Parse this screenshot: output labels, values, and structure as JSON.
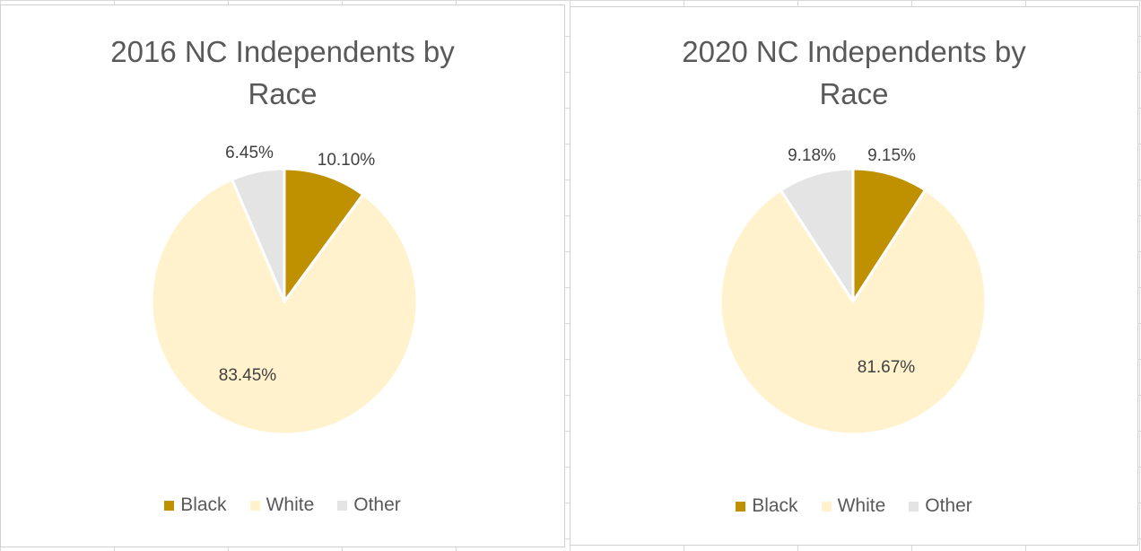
{
  "chart_data": [
    {
      "type": "pie",
      "title": "2016 NC Independents by Race",
      "title_lines": [
        "2016 NC Independents by",
        "Race"
      ],
      "categories": [
        "Black",
        "White",
        "Other"
      ],
      "values": [
        10.1,
        83.45,
        6.45
      ],
      "value_labels": [
        "10.10%",
        "83.45%",
        "6.45%"
      ],
      "colors": [
        "#BF9000",
        "#FFF2CC",
        "#E4E4E4"
      ],
      "legend": "bottom"
    },
    {
      "type": "pie",
      "title": "2020 NC Independents by Race",
      "title_lines": [
        "2020 NC Independents by",
        "Race"
      ],
      "categories": [
        "Black",
        "White",
        "Other"
      ],
      "values": [
        9.15,
        81.67,
        9.18
      ],
      "value_labels": [
        "9.15%",
        "81.67%",
        "9.18%"
      ],
      "colors": [
        "#BF9000",
        "#FFF2CC",
        "#E4E4E4"
      ],
      "legend": "bottom"
    }
  ]
}
